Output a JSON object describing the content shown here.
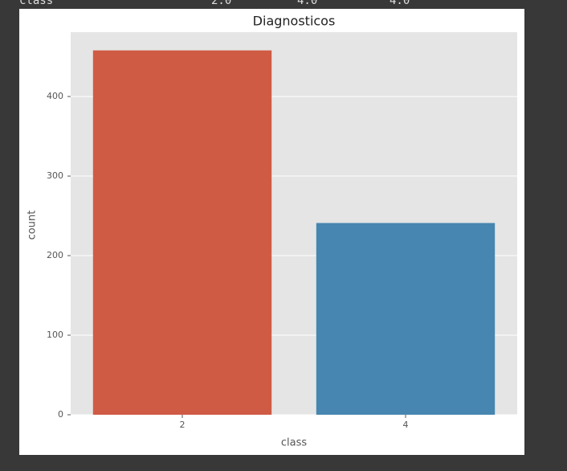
{
  "output_header": [
    "class",
    "2.0",
    "4.0",
    "4.0"
  ],
  "chart_data": {
    "type": "bar",
    "title": "Diagnosticos",
    "x_label": "class",
    "y_label": "count",
    "categories": [
      "2",
      "4"
    ],
    "values": [
      458,
      241
    ],
    "colors": [
      "#cf5b45",
      "#4686b0"
    ],
    "ylim": [
      0,
      480.9
    ],
    "yticks": [
      0,
      100,
      200,
      300,
      400
    ],
    "grid": true
  }
}
